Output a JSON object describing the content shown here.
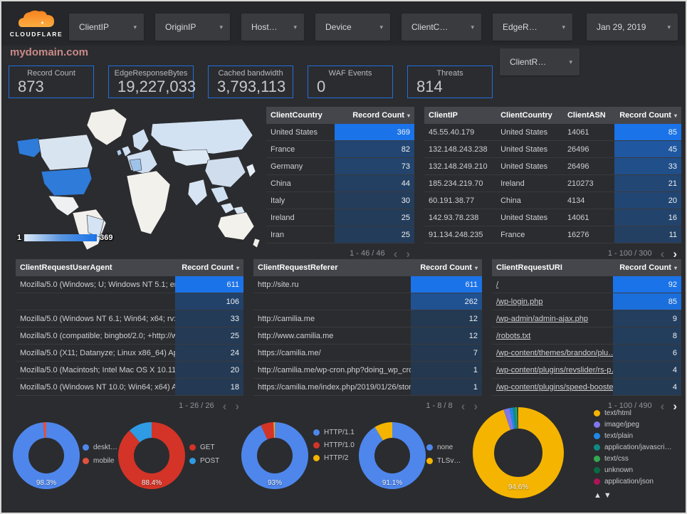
{
  "header": {
    "logo": "CLOUDFLARE",
    "filters": [
      {
        "label": "ClientIP"
      },
      {
        "label": "OriginIP"
      },
      {
        "label": "Host…"
      },
      {
        "label": "Device"
      },
      {
        "label": "ClientC…"
      },
      {
        "label": "EdgeR…"
      }
    ],
    "date_filter": {
      "label": "Jan 29, 2019"
    },
    "secondary_filter": {
      "label": "ClientR…"
    }
  },
  "title": "mydomain.com",
  "scorecards": [
    {
      "label": "Record Count",
      "value": "873"
    },
    {
      "label": "EdgeResponseBytes",
      "value": "19,227,033"
    },
    {
      "label": "Cached bandwidth",
      "value": "3,793,113"
    },
    {
      "label": "WAF Events",
      "value": "0"
    },
    {
      "label": "Threats",
      "value": "814"
    }
  ],
  "map": {
    "legend_min": "1",
    "legend_max": "369"
  },
  "tables": [
    {
      "id": "country",
      "headers": [
        "ClientCountry",
        "Record Count"
      ],
      "rows": [
        [
          "United States",
          369
        ],
        [
          "France",
          82
        ],
        [
          "Germany",
          73
        ],
        [
          "China",
          44
        ],
        [
          "Italy",
          30
        ],
        [
          "Ireland",
          25
        ],
        [
          "Iran",
          25
        ]
      ],
      "max": 369,
      "links": false,
      "pagination": {
        "label": "1 - 46 / 46",
        "prev": false,
        "next": false
      }
    },
    {
      "id": "clientip",
      "headers": [
        "ClientIP",
        "ClientCountry",
        "ClientASN",
        "Record Count"
      ],
      "rows": [
        [
          "45.55.40.179",
          "United States",
          "14061",
          85
        ],
        [
          "132.148.243.238",
          "United States",
          "26496",
          45
        ],
        [
          "132.148.249.210",
          "United States",
          "26496",
          33
        ],
        [
          "185.234.219.70",
          "Ireland",
          "210273",
          21
        ],
        [
          "60.191.38.77",
          "China",
          "4134",
          20
        ],
        [
          "142.93.78.238",
          "United States",
          "14061",
          16
        ],
        [
          "91.134.248.235",
          "France",
          "16276",
          11
        ]
      ],
      "max": 85,
      "links": false,
      "pagination": {
        "label": "1 - 100 / 300",
        "prev": false,
        "next": true
      }
    },
    {
      "id": "useragent",
      "headers": [
        "ClientRequestUserAgent",
        "Record Count"
      ],
      "rows": [
        [
          "Mozilla/5.0 (Windows; U; Windows NT 5.1; en-U…",
          611
        ],
        [
          "",
          106
        ],
        [
          "Mozilla/5.0 (Windows NT 6.1; Win64; x64; rv:64…",
          33
        ],
        [
          "Mozilla/5.0 (compatible; bingbot/2.0; +http://w…",
          25
        ],
        [
          "Mozilla/5.0 (X11; Datanyze; Linux x86_64) Appl…",
          24
        ],
        [
          "Mozilla/5.0 (Macintosh; Intel Mac OS X 10.11; r…",
          20
        ],
        [
          "Mozilla/5.0 (Windows NT 10.0; Win64; x64) App…",
          18
        ]
      ],
      "max": 611,
      "links": false,
      "pagination": {
        "label": "1 - 26 / 26",
        "prev": false,
        "next": false
      }
    },
    {
      "id": "referer",
      "headers": [
        "ClientRequestReferer",
        "Record Count"
      ],
      "rows": [
        [
          "http://site.ru",
          611
        ],
        [
          "",
          262
        ],
        [
          "http://camilia.me",
          12
        ],
        [
          "http://www.camilia.me",
          12
        ],
        [
          "https://camilia.me/",
          7
        ],
        [
          "http://camilia.me/wp-cron.php?doing_wp_cron…",
          1
        ],
        [
          "https://camilia.me/index.php/2019/01/26/stor…",
          1
        ]
      ],
      "max": 611,
      "links": false,
      "pagination": {
        "label": "1 - 8 / 8",
        "prev": false,
        "next": false
      }
    },
    {
      "id": "uri",
      "headers": [
        "ClientRequestURI",
        "Record Count"
      ],
      "rows": [
        [
          "/",
          92
        ],
        [
          "/wp-login.php",
          85
        ],
        [
          "/wp-admin/admin-ajax.php",
          9
        ],
        [
          "/robots.txt",
          8
        ],
        [
          "/wp-content/themes/brandon/plu…",
          6
        ],
        [
          "/wp-content/plugins/revslider/rs-p…",
          4
        ],
        [
          "/wp-content/plugins/speed-booste…",
          4
        ]
      ],
      "max": 92,
      "links": true,
      "pagination": {
        "label": "1 - 100 / 490",
        "prev": false,
        "next": true
      }
    }
  ],
  "donuts": [
    {
      "id": "device",
      "percent_label": "98.3%",
      "slices": [
        {
          "label": "deskt…",
          "value": 98.3,
          "color": "#4e86ec"
        },
        {
          "label": "mobile",
          "value": 1.7,
          "color": "#e25141"
        }
      ]
    },
    {
      "id": "method",
      "percent_label": "88.4%",
      "slices": [
        {
          "label": "GET",
          "value": 88.4,
          "color": "#d33427"
        },
        {
          "label": "POST",
          "value": 11.6,
          "color": "#2f9be4"
        }
      ]
    },
    {
      "id": "http-version",
      "percent_label": "93%",
      "slices": [
        {
          "label": "HTTP/1.1",
          "value": 93,
          "color": "#4e86ec"
        },
        {
          "label": "HTTP/1.0",
          "value": 6.2,
          "color": "#d33427"
        },
        {
          "label": "HTTP/2",
          "value": 0.8,
          "color": "#f5b400"
        }
      ]
    },
    {
      "id": "tls",
      "percent_label": "91.1%",
      "slices": [
        {
          "label": "none",
          "value": 91.1,
          "color": "#4e86ec"
        },
        {
          "label": "TLSv…",
          "value": 8.9,
          "color": "#f5b400"
        }
      ]
    },
    {
      "id": "content-type",
      "percent_label": "94.6%",
      "slices": [
        {
          "label": "text/html",
          "value": 94.6,
          "color": "#f5b400"
        },
        {
          "label": "image/jpeg",
          "value": 2.1,
          "color": "#8077e8"
        },
        {
          "label": "text/plain",
          "value": 1.2,
          "color": "#1e88e5"
        },
        {
          "label": "application/javascri…",
          "value": 0.9,
          "color": "#0f8a84"
        },
        {
          "label": "text/css",
          "value": 0.55,
          "color": "#34a853"
        },
        {
          "label": "unknown",
          "value": 0.35,
          "color": "#0b6a43"
        },
        {
          "label": "application/json",
          "value": 0.3,
          "color": "#ad1457"
        }
      ]
    }
  ],
  "icons": {
    "dropdown_caret": "▾",
    "sort_desc": "▾",
    "chevron_left": "‹",
    "chevron_right": "›",
    "sort_up": "▲",
    "sort_down": "▼"
  },
  "colors": {
    "accent_blue": "#1a73e8",
    "heat_low": "#24384f",
    "heat_high": "#1a73e8",
    "title_pink": "#c98a8a",
    "card_border": "#1f6fe0",
    "header_gray": "#45464b",
    "map_country_high": "#2e7bd9",
    "map_country_low": "#d3e2f3",
    "map_land": "#f3f1ec"
  }
}
